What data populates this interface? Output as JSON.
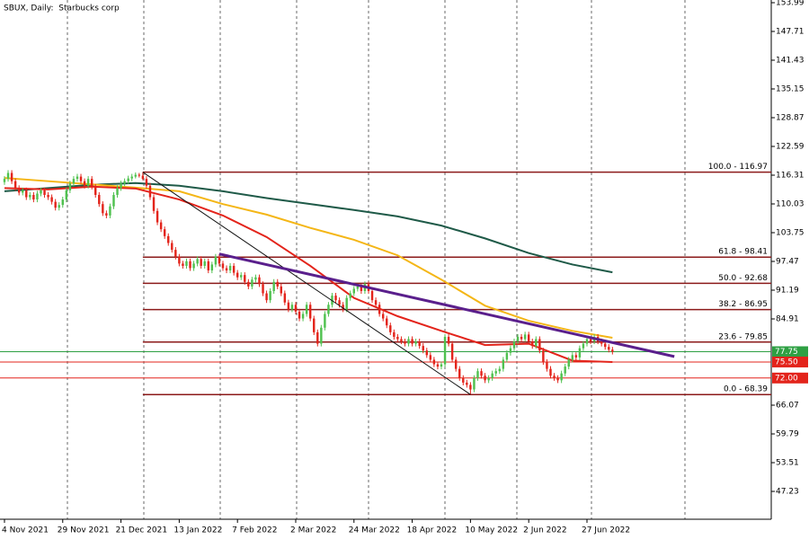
{
  "chart_data": {
    "type": "candlestick",
    "title": "SBUX, Daily:  Starbucks corp",
    "up_color": "#4fc14f",
    "down_color": "#e3241b",
    "candles": [
      [
        114.8,
        116.1,
        114.2,
        115.5
      ],
      [
        115.5,
        117.4,
        114.9,
        116.8
      ],
      [
        116.8,
        117.4,
        114.4,
        115
      ],
      [
        115,
        115.6,
        112.9,
        113.5
      ],
      [
        113.5,
        114.1,
        111.9,
        112.5
      ],
      [
        112.5,
        113.6,
        111.9,
        113
      ],
      [
        113,
        113.6,
        110.9,
        111.5
      ],
      [
        111.5,
        112.6,
        110.9,
        112
      ],
      [
        112,
        112.6,
        110.4,
        111
      ],
      [
        111,
        112.9,
        110.4,
        112.3
      ],
      [
        112.3,
        113.6,
        111.7,
        113
      ],
      [
        113,
        113.6,
        111.4,
        112
      ],
      [
        112,
        112.6,
        110.9,
        111.5
      ],
      [
        111.5,
        112.1,
        109.9,
        110.5
      ],
      [
        110.5,
        111.1,
        108.6,
        109.2
      ],
      [
        109.2,
        110.4,
        108.6,
        109.8
      ],
      [
        109.8,
        111.6,
        109.2,
        111
      ],
      [
        111,
        113.6,
        110.4,
        113
      ],
      [
        113,
        115.1,
        112.4,
        114.5
      ],
      [
        114.5,
        116.1,
        113.9,
        115.5
      ],
      [
        115.5,
        116.6,
        114.9,
        116
      ],
      [
        116,
        116.6,
        114.4,
        115
      ],
      [
        115,
        115.6,
        113.4,
        114
      ],
      [
        114,
        116.1,
        113.4,
        115.5
      ],
      [
        115.5,
        116.1,
        113.2,
        113.8
      ],
      [
        113.8,
        114.4,
        111.4,
        112
      ],
      [
        112,
        112.6,
        109.4,
        110
      ],
      [
        110,
        110.6,
        107.4,
        108
      ],
      [
        108,
        108.6,
        106.9,
        107.5
      ],
      [
        107.5,
        110.1,
        106.9,
        109.5
      ],
      [
        109.5,
        112.6,
        108.9,
        112
      ],
      [
        112,
        114.1,
        111.4,
        113.5
      ],
      [
        113.5,
        115.1,
        112.9,
        114.5
      ],
      [
        114.5,
        115.6,
        113.9,
        115
      ],
      [
        115,
        116.2,
        114.4,
        115.6
      ],
      [
        115.6,
        116.6,
        115,
        116
      ],
      [
        116,
        116.9,
        115.6,
        116.4
      ],
      [
        116.4,
        116.8,
        115.8,
        116.2
      ],
      [
        116.2,
        116.97,
        115.2,
        115.5
      ],
      [
        115.5,
        116.1,
        113.4,
        114
      ],
      [
        114,
        114.6,
        110.9,
        111.5
      ],
      [
        111.5,
        112.1,
        107.9,
        108.5
      ],
      [
        108.5,
        109.1,
        105.4,
        106
      ],
      [
        106,
        106.6,
        103.9,
        104.5
      ],
      [
        104.5,
        105.1,
        102.4,
        103
      ],
      [
        103,
        103.6,
        100.9,
        101.5
      ],
      [
        101.5,
        102.1,
        99.4,
        100
      ],
      [
        100,
        100.6,
        97.9,
        98.5
      ],
      [
        98.5,
        99.1,
        96.4,
        97
      ],
      [
        97,
        97.6,
        95.9,
        96.5
      ],
      [
        96.5,
        98.1,
        95.9,
        97.5
      ],
      [
        97.5,
        98.1,
        95.4,
        96
      ],
      [
        96,
        97.6,
        95.4,
        97
      ],
      [
        97,
        98.6,
        96.4,
        98
      ],
      [
        98,
        98.6,
        95.9,
        96.5
      ],
      [
        96.5,
        98.1,
        95.9,
        97.5
      ],
      [
        97.5,
        98.1,
        94.9,
        95.5
      ],
      [
        95.5,
        97.4,
        94.9,
        96.8
      ],
      [
        96.8,
        99.1,
        96.2,
        98.5
      ],
      [
        98.5,
        99.1,
        96.4,
        97
      ],
      [
        97,
        97.6,
        95.4,
        96
      ],
      [
        96,
        96.6,
        94.9,
        95.5
      ],
      [
        95.5,
        97.1,
        94.9,
        96.5
      ],
      [
        96.5,
        97.1,
        94.4,
        95
      ],
      [
        95,
        95.6,
        93.4,
        94
      ],
      [
        94,
        95.1,
        93.4,
        94.5
      ],
      [
        94.5,
        95.1,
        92.4,
        93
      ],
      [
        93,
        93.6,
        91.4,
        92
      ],
      [
        92,
        94.1,
        91.4,
        93.5
      ],
      [
        93.5,
        94.6,
        92.9,
        94
      ],
      [
        94,
        94.6,
        91.9,
        92.5
      ],
      [
        92.5,
        93.1,
        89.9,
        90.5
      ],
      [
        90.5,
        91.1,
        88.4,
        89
      ],
      [
        89,
        91.6,
        88.4,
        91
      ],
      [
        91,
        93.6,
        90.4,
        93
      ],
      [
        93,
        93.6,
        91.4,
        92
      ],
      [
        92,
        92.6,
        89.9,
        90.5
      ],
      [
        90.5,
        91.1,
        87.9,
        88.5
      ],
      [
        88.5,
        89.1,
        86.4,
        87
      ],
      [
        87,
        88.6,
        86.4,
        88
      ],
      [
        88,
        88.6,
        85.9,
        86.5
      ],
      [
        86.5,
        87.1,
        84.4,
        85
      ],
      [
        85,
        86.6,
        84.4,
        86
      ],
      [
        86,
        88.6,
        85.4,
        88
      ],
      [
        88,
        88.6,
        84.4,
        85
      ],
      [
        85,
        85.6,
        81.4,
        82
      ],
      [
        82,
        82.6,
        78.9,
        79.5
      ],
      [
        79.5,
        83.6,
        78.9,
        83
      ],
      [
        83,
        86.6,
        82.4,
        86
      ],
      [
        86,
        88.6,
        85.4,
        88
      ],
      [
        88,
        90.6,
        87.4,
        90
      ],
      [
        90,
        90.6,
        88.4,
        89
      ],
      [
        89,
        89.6,
        87.4,
        88
      ],
      [
        88,
        88.6,
        86.4,
        87
      ],
      [
        87,
        90.1,
        86.4,
        89.5
      ],
      [
        89.5,
        91.1,
        88.9,
        90.5
      ],
      [
        90.5,
        92.1,
        89.9,
        91.5
      ],
      [
        91.5,
        92.6,
        90.9,
        92
      ],
      [
        92,
        92.6,
        90.4,
        91
      ],
      [
        91,
        93.1,
        90.4,
        92.5
      ],
      [
        92.5,
        93.1,
        90.4,
        91
      ],
      [
        91,
        91.6,
        88.4,
        89
      ],
      [
        89,
        89.6,
        87.4,
        88
      ],
      [
        88,
        88.6,
        85.4,
        86
      ],
      [
        86,
        86.6,
        84.4,
        85
      ],
      [
        85,
        85.6,
        82.9,
        83.5
      ],
      [
        83.5,
        84.1,
        81.4,
        82
      ],
      [
        82,
        82.6,
        80.4,
        81
      ],
      [
        81,
        81.6,
        79.9,
        80.5
      ],
      [
        80.5,
        81.1,
        79.4,
        80
      ],
      [
        80,
        80.6,
        78.9,
        79.5
      ],
      [
        79.5,
        81.1,
        78.9,
        80.5
      ],
      [
        80.5,
        81.1,
        78.9,
        79.5
      ],
      [
        79.5,
        80.6,
        78.9,
        80
      ],
      [
        80,
        80.6,
        78.4,
        79
      ],
      [
        79,
        79.6,
        77.4,
        78
      ],
      [
        78,
        78.6,
        76.4,
        77
      ],
      [
        77,
        77.6,
        75.4,
        76
      ],
      [
        76,
        76.6,
        74.4,
        75
      ],
      [
        75,
        75.6,
        73.9,
        74.5
      ],
      [
        74.5,
        75.6,
        73.9,
        75
      ],
      [
        75,
        81.6,
        74.4,
        81
      ],
      [
        81,
        81.6,
        78.9,
        79.5
      ],
      [
        79.5,
        80.1,
        75.4,
        76
      ],
      [
        76,
        76.6,
        73.4,
        74
      ],
      [
        74,
        74.6,
        71.4,
        72
      ],
      [
        72,
        72.6,
        70.4,
        71
      ],
      [
        71,
        71.6,
        69.9,
        70.5
      ],
      [
        70.5,
        71.1,
        68.39,
        69.5
      ],
      [
        69.5,
        72.6,
        68.9,
        72
      ],
      [
        72,
        74.1,
        71.4,
        73.5
      ],
      [
        73.5,
        74.1,
        71.9,
        72.5
      ],
      [
        72.5,
        73.1,
        70.9,
        71.5
      ],
      [
        71.5,
        72.6,
        70.9,
        72
      ],
      [
        72,
        73.6,
        71.4,
        73
      ],
      [
        73,
        74.1,
        72.4,
        73.5
      ],
      [
        73.5,
        74.6,
        72.9,
        74
      ],
      [
        74,
        76.6,
        73.4,
        76
      ],
      [
        76,
        78.1,
        75.4,
        77.5
      ],
      [
        77.5,
        79.1,
        76.9,
        78.5
      ],
      [
        78.5,
        80.6,
        77.9,
        80
      ],
      [
        80,
        81.6,
        79.4,
        81
      ],
      [
        81,
        81.6,
        79.9,
        80.5
      ],
      [
        80.5,
        82.1,
        79.9,
        81.5
      ],
      [
        81.5,
        82.1,
        79.4,
        80
      ],
      [
        80,
        80.6,
        78.4,
        79
      ],
      [
        79,
        81.1,
        78.4,
        80.5
      ],
      [
        80.5,
        81.1,
        77.4,
        78
      ],
      [
        78,
        78.6,
        74.9,
        75.5
      ],
      [
        75.5,
        76.1,
        73.4,
        74
      ],
      [
        74,
        74.6,
        71.9,
        72.5
      ],
      [
        72.5,
        73.1,
        71.4,
        72
      ],
      [
        72,
        72.6,
        70.9,
        71.5
      ],
      [
        71.5,
        73.6,
        70.9,
        73
      ],
      [
        73,
        75.1,
        72.4,
        74.5
      ],
      [
        74.5,
        76.6,
        73.9,
        76
      ],
      [
        76,
        77.6,
        75.4,
        77
      ],
      [
        77,
        77.6,
        75.9,
        76.5
      ],
      [
        76.5,
        79.1,
        75.9,
        78.5
      ],
      [
        78.5,
        80.1,
        77.9,
        79.5
      ],
      [
        79.5,
        81.1,
        78.9,
        80.5
      ],
      [
        80.5,
        81.1,
        79.4,
        80
      ],
      [
        80,
        81.6,
        79.4,
        81
      ],
      [
        81,
        81.6,
        79.4,
        80
      ],
      [
        80,
        80.6,
        78.9,
        79.5
      ],
      [
        79.5,
        80.1,
        78.2,
        78.8
      ],
      [
        78.8,
        79.4,
        77.6,
        78.2
      ],
      [
        78.2,
        78.8,
        77.15,
        77.75
      ]
    ],
    "moving_averages": [
      {
        "color": "#1f5a48",
        "x": [
          0,
          12,
          24,
          36,
          48,
          60,
          72,
          84,
          96,
          108,
          120,
          132,
          144,
          156,
          167
        ],
        "values": [
          112.8,
          113.5,
          114.2,
          114.6,
          114,
          112.8,
          111.3,
          110,
          108.7,
          107.3,
          105.3,
          102.5,
          99.3,
          96.8,
          95.1
        ]
      },
      {
        "color": "#f4b616",
        "x": [
          0,
          12,
          24,
          36,
          48,
          60,
          72,
          84,
          96,
          108,
          120,
          132,
          144,
          156,
          167
        ],
        "values": [
          115.7,
          115,
          114.3,
          113.6,
          112.8,
          110,
          107.7,
          104.8,
          102.2,
          98.8,
          93.5,
          87.8,
          84.5,
          82.3,
          80.8
        ]
      },
      {
        "color": "#e3241b",
        "x": [
          0,
          12,
          24,
          36,
          48,
          60,
          72,
          84,
          96,
          108,
          120,
          132,
          144,
          156,
          167
        ],
        "values": [
          113.5,
          113.2,
          113.8,
          113.4,
          111,
          107.5,
          102.8,
          96.5,
          89.5,
          85.5,
          82.3,
          79.2,
          79.5,
          75.8,
          75.5
        ]
      }
    ],
    "trend_lines": [
      {
        "color": "#111111",
        "width": 1,
        "x": [
          38,
          128
        ],
        "values": [
          116.97,
          68.39
        ]
      },
      {
        "color": "#5a1f8c",
        "width": 3,
        "x": [
          59,
          184
        ],
        "values": [
          99.1,
          76.7
        ]
      }
    ],
    "fib_start": 38,
    "fib_color": "#8b1a1a",
    "fib_levels": [
      {
        "value": 116.97,
        "label": "100.0 - 116.97"
      },
      {
        "value": 98.41,
        "label": "61.8 - 98.41"
      },
      {
        "value": 92.68,
        "label": "50.0 - 92.68"
      },
      {
        "value": 86.95,
        "label": "38.2 - 86.95"
      },
      {
        "value": 79.85,
        "label": "23.6 - 79.85"
      },
      {
        "value": 68.39,
        "label": "0.0 - 68.39"
      }
    ],
    "price_lines": [
      {
        "value": 77.75,
        "label": "77.75",
        "color": "#2ea043"
      },
      {
        "value": 75.5,
        "label": "75.50",
        "color": "#e3241b"
      },
      {
        "value": 72,
        "label": "72.00",
        "color": "#e3241b"
      }
    ],
    "xlim": [
      -1.23,
      210.62
    ],
    "xticks": [
      {
        "value": 0,
        "label": "4 Nov 2021"
      },
      {
        "value": 16,
        "label": "29 Nov 2021"
      },
      {
        "value": 32,
        "label": "21 Dec 2021"
      },
      {
        "value": 48,
        "label": "13 Jan 2022"
      },
      {
        "value": 64,
        "label": "7 Feb 2022"
      },
      {
        "value": 80,
        "label": "2 Mar 2022"
      },
      {
        "value": 96,
        "label": "24 Mar 2022"
      },
      {
        "value": 112,
        "label": "18 Apr 2022"
      },
      {
        "value": 128,
        "label": "10 May 2022"
      },
      {
        "value": 144,
        "label": "2 Jun 2022"
      },
      {
        "value": 160,
        "label": "27 Jun 2022"
      }
    ],
    "ylim": [
      41.15,
      154.58
    ],
    "yticks": [
      153.99,
      147.71,
      141.43,
      135.15,
      128.87,
      122.59,
      116.31,
      110.03,
      103.75,
      97.47,
      91.19,
      84.91,
      66.07,
      59.79,
      53.51,
      47.23
    ]
  }
}
